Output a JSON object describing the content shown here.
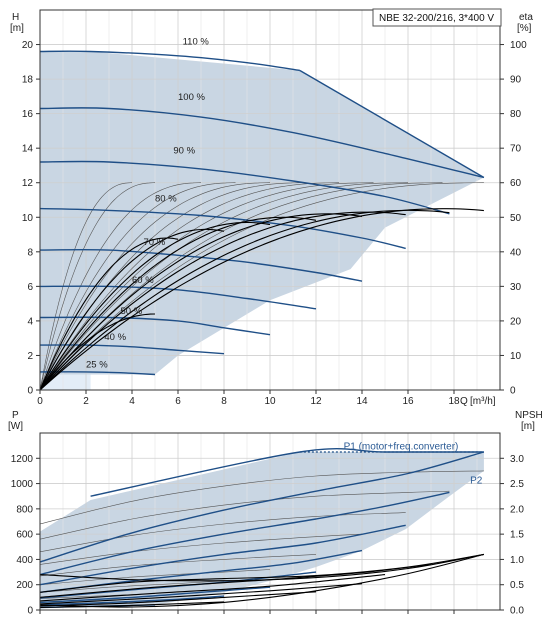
{
  "title": "NBE 32-200/216, 3*400 V",
  "colors": {
    "region": "#c9d6e3",
    "region_light": "#e3edf7",
    "curve": "#1f4f87",
    "eff": "#000000",
    "grid": "#cfcfcf",
    "frame": "#333333"
  },
  "chart_data": [
    {
      "type": "line",
      "name": "head",
      "xlabel": "Q",
      "xunit": "[m³/h]",
      "ylabel": "H",
      "yunit": "[m]",
      "y2label": "eta",
      "y2unit": "[%]",
      "xlim": [
        0,
        20
      ],
      "ylim": [
        0,
        22
      ],
      "y2lim": [
        0,
        110
      ],
      "xticks": [
        0,
        2,
        4,
        6,
        8,
        10,
        12,
        14,
        16,
        18
      ],
      "yticks": [
        0,
        2,
        4,
        6,
        8,
        10,
        12,
        14,
        16,
        18,
        20
      ],
      "y2ticks": [
        0,
        10,
        20,
        30,
        40,
        50,
        60,
        70,
        80,
        90,
        100
      ],
      "grid": true,
      "operating_region": [
        [
          0,
          19.6
        ],
        [
          2.2,
          19.6
        ],
        [
          11.3,
          18.5
        ],
        [
          19.3,
          12.3
        ],
        [
          15,
          9.4
        ],
        [
          13.5,
          7.0
        ],
        [
          10,
          5.2
        ],
        [
          6,
          2.0
        ],
        [
          5,
          0.9
        ],
        [
          0,
          0.9
        ]
      ],
      "speed_curves": [
        {
          "label": "110 %",
          "points": [
            [
              0,
              19.6
            ],
            [
              2.2,
              19.6
            ],
            [
              6,
              19.35
            ],
            [
              9,
              18.95
            ],
            [
              11.3,
              18.5
            ]
          ],
          "tail": [
            [
              11.3,
              18.5
            ],
            [
              19.3,
              12.3
            ]
          ]
        },
        {
          "label": "100 %",
          "points": [
            [
              0,
              16.3
            ],
            [
              3,
              16.3
            ],
            [
              7,
              15.8
            ],
            [
              11,
              14.9
            ],
            [
              15,
              13.7
            ],
            [
              19.3,
              12.3
            ]
          ]
        },
        {
          "label": "90 %",
          "points": [
            [
              0,
              13.2
            ],
            [
              3,
              13.2
            ],
            [
              7,
              12.8
            ],
            [
              11,
              12.1
            ],
            [
              15,
              11.2
            ],
            [
              17.8,
              10.2
            ]
          ]
        },
        {
          "label": "80 %",
          "points": [
            [
              0,
              10.5
            ],
            [
              3,
              10.4
            ],
            [
              7,
              10.1
            ],
            [
              11,
              9.5
            ],
            [
              14,
              8.8
            ],
            [
              15.9,
              8.2
            ]
          ]
        },
        {
          "label": "70 %",
          "points": [
            [
              0,
              8.1
            ],
            [
              3,
              8.1
            ],
            [
              6,
              7.8
            ],
            [
              9,
              7.4
            ],
            [
              12,
              6.8
            ],
            [
              14,
              6.3
            ]
          ]
        },
        {
          "label": "60 %",
          "points": [
            [
              0,
              6.0
            ],
            [
              3,
              6.0
            ],
            [
              6,
              5.8
            ],
            [
              9,
              5.3
            ],
            [
              12,
              4.7
            ]
          ]
        },
        {
          "label": "50 %",
          "points": [
            [
              0,
              4.2
            ],
            [
              3,
              4.2
            ],
            [
              6,
              4.0
            ],
            [
              8,
              3.6
            ],
            [
              10,
              3.2
            ]
          ]
        },
        {
          "label": "40 %",
          "points": [
            [
              0,
              2.6
            ],
            [
              2,
              2.6
            ],
            [
              4,
              2.5
            ],
            [
              6,
              2.3
            ],
            [
              8,
              2.1
            ]
          ]
        },
        {
          "label": "25 %",
          "points": [
            [
              0,
              1.05
            ],
            [
              2,
              1.05
            ],
            [
              3.5,
              1.0
            ],
            [
              5,
              0.9
            ]
          ]
        }
      ],
      "speed_labels": [
        {
          "text": "110 %",
          "x": 6.2,
          "y": 20.0
        },
        {
          "text": "100 %",
          "x": 6.0,
          "y": 16.8
        },
        {
          "text": "90 %",
          "x": 5.8,
          "y": 13.7
        },
        {
          "text": "80 %",
          "x": 5.0,
          "y": 10.9
        },
        {
          "text": "70 %",
          "x": 4.5,
          "y": 8.4
        },
        {
          "text": "60 %",
          "x": 4.0,
          "y": 6.2
        },
        {
          "text": "50 %",
          "x": 3.5,
          "y": 4.4
        },
        {
          "text": "40 %",
          "x": 2.8,
          "y": 2.9
        },
        {
          "text": "25 %",
          "x": 2.0,
          "y": 1.3
        }
      ],
      "efficiency_curves": [
        {
          "qmax": 19.3,
          "etamax": 52.5,
          "q_at_max": 17.5
        },
        {
          "qmax": 17.8,
          "etamax": 52.0,
          "q_at_max": 16.0
        },
        {
          "qmax": 15.9,
          "etamax": 51.5,
          "q_at_max": 14.2
        },
        {
          "qmax": 14.0,
          "etamax": 51.0,
          "q_at_max": 12.5
        },
        {
          "qmax": 12.0,
          "etamax": 50.0,
          "q_at_max": 10.6
        },
        {
          "qmax": 10.0,
          "etamax": 48.5,
          "q_at_max": 9.0
        },
        {
          "qmax": 8.0,
          "etamax": 46.5,
          "q_at_max": 7.2
        },
        {
          "qmax": 6.0,
          "etamax": 44.0,
          "q_at_max": 5.5
        },
        {
          "qmax": 5.0,
          "etamax": 22.0,
          "q_at_max": 5.0
        }
      ],
      "thin_curves": [
        {
          "qmax": 19.3,
          "etamax": 60.0
        },
        {
          "qmax": 17.5,
          "etamax": 60.0
        },
        {
          "qmax": 16.0,
          "etamax": 60.0
        },
        {
          "qmax": 14.5,
          "etamax": 60.0
        },
        {
          "qmax": 13.0,
          "etamax": 60.0
        },
        {
          "qmax": 11.5,
          "etamax": 60.0
        },
        {
          "qmax": 10.0,
          "etamax": 60.0
        },
        {
          "qmax": 8.5,
          "etamax": 60.0
        },
        {
          "qmax": 7.0,
          "etamax": 60.0
        },
        {
          "qmax": 5.0,
          "etamax": 60.0
        },
        {
          "qmax": 4.0,
          "etamax": 60.0
        }
      ]
    },
    {
      "type": "line",
      "name": "power",
      "ylabel": "P",
      "yunit": "[W]",
      "y2label": "NPSH",
      "y2unit": "[m]",
      "xlim": [
        0,
        20
      ],
      "ylim": [
        0,
        1400
      ],
      "y2lim": [
        0,
        3.5
      ],
      "yticks": [
        0,
        200,
        400,
        600,
        800,
        1000,
        1200
      ],
      "y2ticks": [
        0.0,
        0.5,
        1.0,
        1.5,
        2.0,
        2.5,
        3.0
      ],
      "grid": true,
      "legend": [
        {
          "text": "P1 (motor+freq.converter)",
          "x": 13.2,
          "y": 1270
        },
        {
          "text": "P2",
          "x": 18.7,
          "y": 1000
        }
      ],
      "operating_region": [
        [
          0,
          620
        ],
        [
          2.2,
          870
        ],
        [
          11.3,
          1250
        ],
        [
          19.3,
          1250
        ],
        [
          19.3,
          1100
        ],
        [
          17.8,
          900
        ],
        [
          15.9,
          640
        ],
        [
          14,
          470
        ],
        [
          12,
          340
        ],
        [
          10,
          230
        ],
        [
          8,
          140
        ],
        [
          6,
          70
        ],
        [
          5,
          40
        ],
        [
          0,
          20
        ]
      ],
      "p1_curves": [
        {
          "points": [
            [
              2.2,
              900
            ],
            [
              11.3,
              1250
            ],
            [
              15,
              1250
            ],
            [
              19.3,
              1250
            ]
          ]
        },
        {
          "points": [
            [
              0,
              380
            ],
            [
              4,
              610
            ],
            [
              8,
              790
            ],
            [
              12,
              940
            ],
            [
              16,
              1080
            ],
            [
              19.3,
              1250
            ]
          ]
        },
        {
          "points": [
            [
              0,
              280
            ],
            [
              4,
              460
            ],
            [
              8,
              600
            ],
            [
              12,
              720
            ],
            [
              15,
              820
            ],
            [
              17.8,
              930
            ]
          ]
        },
        {
          "points": [
            [
              0,
              200
            ],
            [
              4,
              330
            ],
            [
              8,
              440
            ],
            [
              12,
              530
            ],
            [
              15.9,
              670
            ]
          ]
        },
        {
          "points": [
            [
              0,
              140
            ],
            [
              4,
              230
            ],
            [
              8,
              310
            ],
            [
              11,
              370
            ],
            [
              14,
              470
            ]
          ]
        },
        {
          "points": [
            [
              0,
              95
            ],
            [
              4,
              160
            ],
            [
              8,
              220
            ],
            [
              12,
              300
            ]
          ]
        },
        {
          "points": [
            [
              0,
              60
            ],
            [
              4,
              100
            ],
            [
              7,
              140
            ],
            [
              10,
              180
            ]
          ]
        },
        {
          "points": [
            [
              0,
              40
            ],
            [
              3,
              60
            ],
            [
              6,
              85
            ],
            [
              8,
              110
            ]
          ]
        },
        {
          "points": [
            [
              0,
              20
            ],
            [
              2.5,
              30
            ],
            [
              5,
              40
            ]
          ]
        }
      ],
      "p2_thin_curves": [
        {
          "points": [
            [
              0,
              680
            ],
            [
              4,
              860
            ],
            [
              8,
              980
            ],
            [
              12,
              1060
            ],
            [
              16,
              1090
            ],
            [
              19.3,
              1100
            ]
          ]
        },
        {
          "points": [
            [
              0,
              560
            ],
            [
              4,
              720
            ],
            [
              8,
              830
            ],
            [
              12,
              900
            ],
            [
              16,
              930
            ],
            [
              17.8,
              940
            ]
          ]
        },
        {
          "points": [
            [
              0,
              460
            ],
            [
              4,
              590
            ],
            [
              8,
              680
            ],
            [
              12,
              740
            ],
            [
              15.9,
              770
            ]
          ]
        },
        {
          "points": [
            [
              0,
              360
            ],
            [
              4,
              460
            ],
            [
              8,
              530
            ],
            [
              12,
              580
            ],
            [
              14,
              600
            ]
          ]
        },
        {
          "points": [
            [
              0,
              270
            ],
            [
              4,
              350
            ],
            [
              8,
              400
            ],
            [
              12,
              440
            ]
          ]
        },
        {
          "points": [
            [
              0,
              200
            ],
            [
              4,
              260
            ],
            [
              8,
              300
            ],
            [
              10,
              320
            ]
          ]
        },
        {
          "points": [
            [
              0,
              140
            ],
            [
              3,
              180
            ],
            [
              6,
              210
            ],
            [
              8,
              230
            ]
          ]
        },
        {
          "points": [
            [
              0,
              90
            ],
            [
              3,
              115
            ],
            [
              5,
              130
            ]
          ]
        }
      ],
      "npsh_curves": [
        {
          "points": [
            [
              0,
              0.1
            ],
            [
              4,
              0.06
            ],
            [
              8,
              0.15
            ],
            [
              12,
              0.38
            ],
            [
              16,
              0.72
            ],
            [
              19.3,
              1.1
            ]
          ]
        },
        {
          "points": [
            [
              0,
              0.7
            ],
            [
              4,
              0.6
            ],
            [
              8,
              0.58
            ],
            [
              12,
              0.64
            ],
            [
              16,
              0.82
            ],
            [
              19.3,
              1.1
            ]
          ]
        },
        {
          "points": [
            [
              0,
              0.35
            ],
            [
              4,
              0.55
            ],
            [
              8,
              0.62
            ],
            [
              12,
              0.68
            ],
            [
              16,
              0.85
            ],
            [
              19.3,
              1.1
            ]
          ]
        },
        {
          "points": [
            [
              0,
              0.25
            ],
            [
              5,
              0.45
            ],
            [
              10,
              0.6
            ],
            [
              14,
              0.74
            ],
            [
              17,
              0.9
            ]
          ]
        },
        {
          "points": [
            [
              0,
              0.18
            ],
            [
              5,
              0.33
            ],
            [
              10,
              0.47
            ],
            [
              15,
              0.7
            ]
          ]
        },
        {
          "points": [
            [
              0,
              0.12
            ],
            [
              5,
              0.24
            ],
            [
              10,
              0.38
            ],
            [
              14,
              0.52
            ]
          ]
        },
        {
          "points": [
            [
              0,
              0.08
            ],
            [
              4,
              0.14
            ],
            [
              8,
              0.25
            ],
            [
              12,
              0.36
            ]
          ]
        },
        {
          "points": [
            [
              0,
              0.05
            ],
            [
              4,
              0.09
            ],
            [
              8,
              0.16
            ]
          ]
        }
      ]
    }
  ]
}
